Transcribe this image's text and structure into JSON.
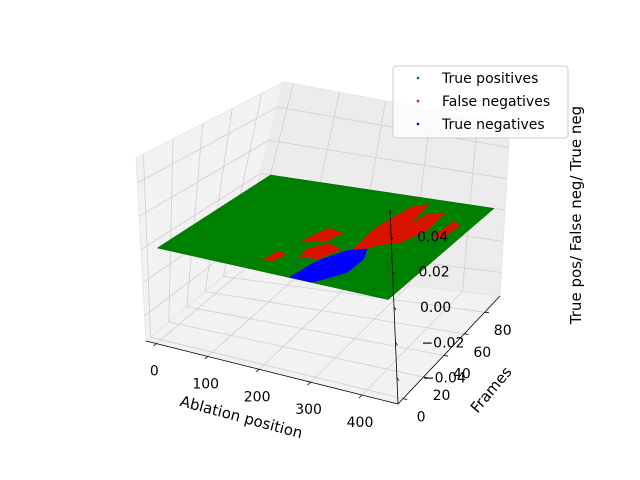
{
  "chart_data": {
    "type": "scatter",
    "projection": "3d",
    "title": "",
    "xlabel": "Ablation position",
    "ylabel": "Frames",
    "zlabel": "True pos/ False neg/ True neg",
    "xticks": [
      "0",
      "100",
      "200",
      "300",
      "400"
    ],
    "yticks": [
      "0",
      "20",
      "40",
      "60",
      "80"
    ],
    "zticks": [
      "−0.04",
      "−0.02",
      "0.00",
      "0.02",
      "0.04"
    ],
    "xlim": [
      -20,
      470
    ],
    "ylim": [
      -5,
      95
    ],
    "zlim": [
      -0.055,
      0.055
    ],
    "grid": true,
    "legend_position": "top-right",
    "surface": {
      "x_range": [
        0,
        448
      ],
      "y_range": [
        0,
        95
      ],
      "z": 0.0
    },
    "series": [
      {
        "name": "True positives",
        "color": "#008000",
        "z": 0.0,
        "description_region": "fills most of the grid"
      },
      {
        "name": "False negatives",
        "color": "#ff0000",
        "z": 0.0
      },
      {
        "name": "True negatives",
        "color": "#0000ff",
        "z": 0.0
      }
    ],
    "regions": {
      "true_negatives": [
        [
          255,
          0
        ],
        [
          300,
          0
        ],
        [
          335,
          15
        ],
        [
          335,
          30
        ],
        [
          320,
          40
        ],
        [
          290,
          35
        ],
        [
          265,
          20
        ]
      ],
      "false_negatives": [
        [
          [
            300,
            30
          ],
          [
            330,
            45
          ],
          [
            340,
            70
          ],
          [
            330,
            90
          ],
          [
            305,
            85
          ],
          [
            290,
            60
          ]
        ],
        [
          [
            330,
            45
          ],
          [
            360,
            50
          ],
          [
            380,
            65
          ],
          [
            375,
            85
          ],
          [
            345,
            80
          ]
        ],
        [
          [
            230,
            20
          ],
          [
            265,
            22
          ],
          [
            280,
            35
          ],
          [
            250,
            38
          ],
          [
            225,
            30
          ]
        ],
        [
          [
            200,
            35
          ],
          [
            240,
            38
          ],
          [
            250,
            50
          ],
          [
            215,
            52
          ]
        ],
        [
          [
            180,
            10
          ],
          [
            200,
            12
          ],
          [
            205,
            20
          ],
          [
            185,
            22
          ]
        ],
        [
          [
            400,
            60
          ],
          [
            420,
            62
          ],
          [
            425,
            75
          ],
          [
            405,
            78
          ]
        ]
      ]
    }
  }
}
